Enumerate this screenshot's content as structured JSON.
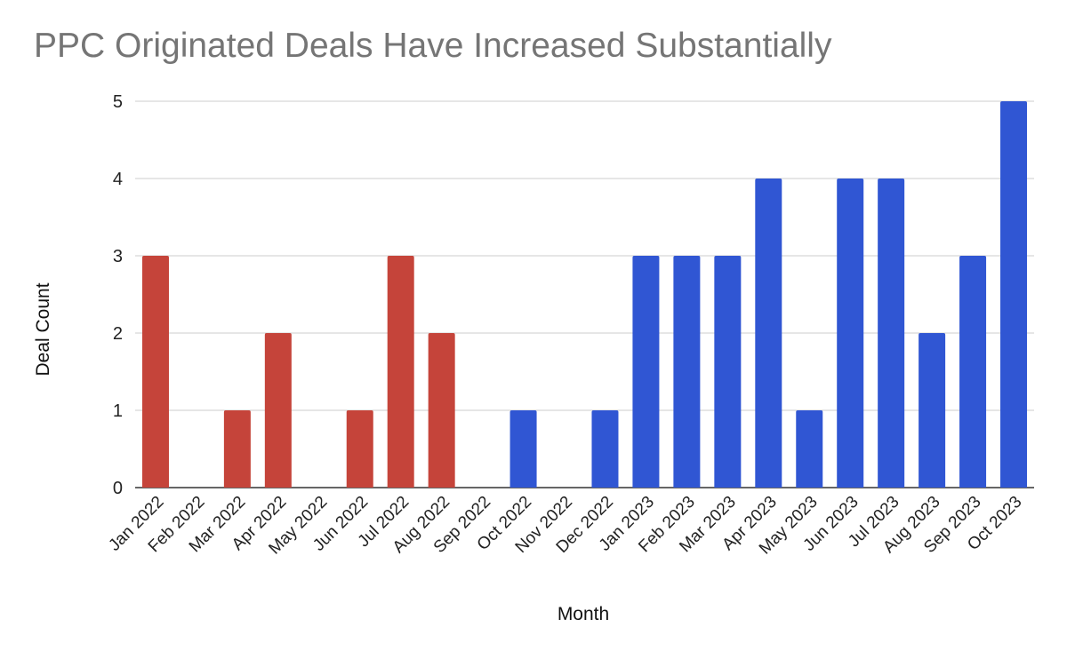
{
  "chart_data": {
    "type": "bar",
    "title": "PPC Originated Deals Have Increased Substantially",
    "xlabel": "Month",
    "ylabel": "Deal Count",
    "ylim": [
      0,
      5
    ],
    "yticks": [
      0,
      1,
      2,
      3,
      4,
      5
    ],
    "grid": true,
    "legend": "none",
    "categories": [
      "Jan 2022",
      "Feb 2022",
      "Mar 2022",
      "Apr 2022",
      "May 2022",
      "Jun 2022",
      "Jul 2022",
      "Aug 2022",
      "Sep 2022",
      "Oct 2022",
      "Nov 2022",
      "Dec 2022",
      "Jan 2023",
      "Feb 2023",
      "Mar 2023",
      "Apr 2023",
      "May 2023",
      "Jun 2023",
      "Jul 2023",
      "Aug 2023",
      "Sep 2023",
      "Oct 2023"
    ],
    "values": [
      3,
      0,
      1,
      2,
      0,
      1,
      3,
      2,
      0,
      1,
      0,
      1,
      3,
      3,
      3,
      4,
      1,
      4,
      4,
      2,
      3,
      5
    ],
    "colors": {
      "2022": "#c5443a",
      "later": "#3056d3",
      "grid": "#cccccc",
      "baseline": "#333333"
    },
    "color_split_index": 9
  }
}
